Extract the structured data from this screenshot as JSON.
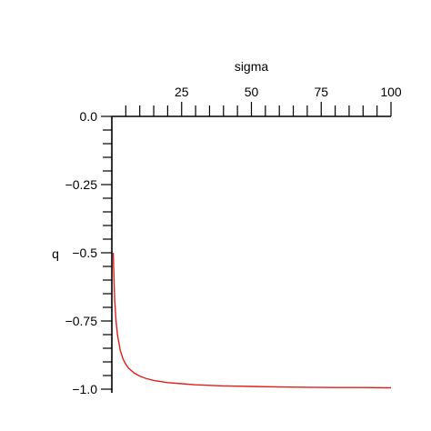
{
  "chart_data": {
    "type": "line",
    "title": "",
    "xlabel": "sigma",
    "ylabel": "q",
    "xlim": [
      0,
      100
    ],
    "ylim": [
      -1.0,
      0.0
    ],
    "x_axis_position": "top",
    "x_ticks": [
      25,
      50,
      75,
      100
    ],
    "x_tick_labels": [
      "25",
      "50",
      "75",
      "100"
    ],
    "x_minor_step": 5,
    "y_ticks": [
      0.0,
      -0.25,
      -0.5,
      -0.75,
      -1.0
    ],
    "y_tick_labels": [
      "0.0",
      "−0.25",
      "−0.5",
      "−0.75",
      "−1.0"
    ],
    "y_minor_step": 0.05,
    "grid": false,
    "series": [
      {
        "color": "#e0201a",
        "x": [
          0.5,
          1,
          1.5,
          2,
          3,
          4,
          5,
          6,
          8,
          10,
          12,
          15,
          20,
          25,
          30,
          40,
          50,
          60,
          70,
          80,
          90,
          100
        ],
        "y": [
          -0.5,
          -0.67,
          -0.75,
          -0.8,
          -0.857,
          -0.889,
          -0.909,
          -0.923,
          -0.941,
          -0.952,
          -0.96,
          -0.968,
          -0.976,
          -0.98,
          -0.984,
          -0.988,
          -0.99,
          -0.992,
          -0.993,
          -0.994,
          -0.994,
          -0.995
        ]
      }
    ]
  }
}
